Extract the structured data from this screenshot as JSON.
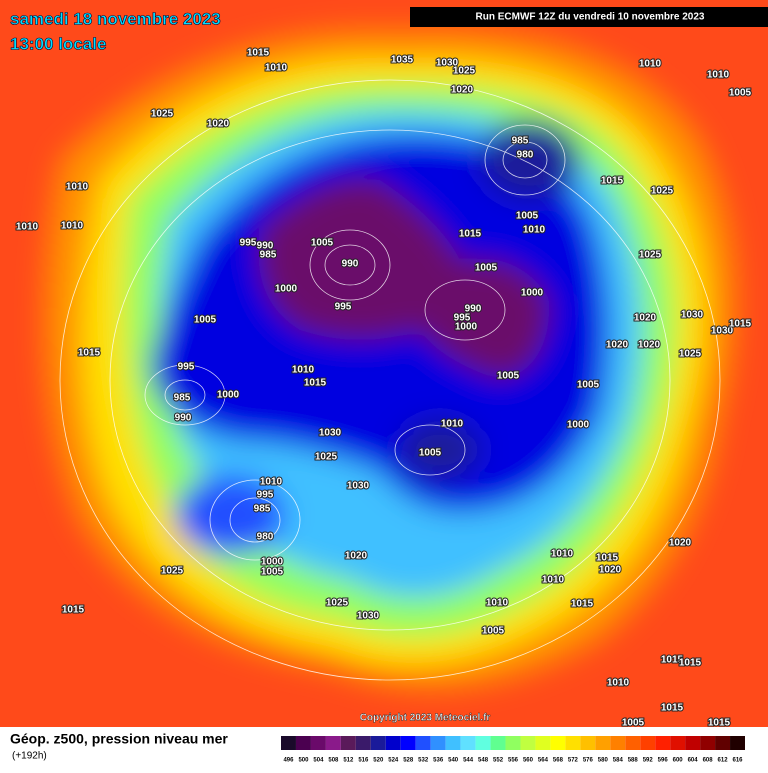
{
  "header": {
    "date": "samedi 18 novembre 2023",
    "time": "13:00 locale",
    "run": "Run ECMWF 12Z du vendredi 10 novembre 2023",
    "copyright": "Copyright 2023 Meteociel.fr"
  },
  "footer": {
    "title": "Géop. z500, pression niveau mer",
    "range": "(+192h)"
  },
  "legend": {
    "ticks": [
      496,
      500,
      504,
      508,
      512,
      516,
      520,
      524,
      528,
      532,
      536,
      540,
      544,
      548,
      552,
      556,
      560,
      564,
      568,
      572,
      576,
      580,
      584,
      588,
      592,
      596,
      600,
      604,
      608,
      612,
      616
    ],
    "colors": [
      "#1a0a2a",
      "#4b0050",
      "#6a0a6a",
      "#8a1a8a",
      "#5a1a5a",
      "#3a1a6a",
      "#1a1a9a",
      "#0000cc",
      "#0000ff",
      "#2050ff",
      "#3090ff",
      "#40c0ff",
      "#60e0ff",
      "#60ffe0",
      "#60ff90",
      "#90ff60",
      "#c0ff40",
      "#e0ff20",
      "#ffff00",
      "#ffe000",
      "#ffc000",
      "#ffa000",
      "#ff8000",
      "#ff6000",
      "#ff4000",
      "#ff2000",
      "#e01000",
      "#c00000",
      "#900000",
      "#600000",
      "#200000"
    ]
  },
  "isobar_labels": [
    1015,
    1010,
    1035,
    1030,
    1025,
    1020,
    1010,
    1010,
    1005,
    1025,
    1020,
    985,
    980,
    1015,
    1025,
    1010,
    1010,
    1010,
    995,
    990,
    985,
    1005,
    1015,
    1010,
    1005,
    990,
    1025,
    1005,
    1000,
    995,
    990,
    995,
    1000,
    1000,
    1020,
    1030,
    1030,
    1015,
    1005,
    1015,
    1020,
    1020,
    1025,
    995,
    1010,
    1015,
    1005,
    1005,
    985,
    1000,
    990,
    1010,
    1000,
    1030,
    1025,
    1005,
    1030,
    1010,
    995,
    985,
    980,
    1000,
    1005,
    1020,
    1010,
    1015,
    1020,
    1020,
    1010,
    1025,
    1025,
    1015,
    1010,
    1030,
    1005,
    1015,
    1015,
    1010,
    1005,
    1015,
    1015,
    1000,
    1015
  ]
}
